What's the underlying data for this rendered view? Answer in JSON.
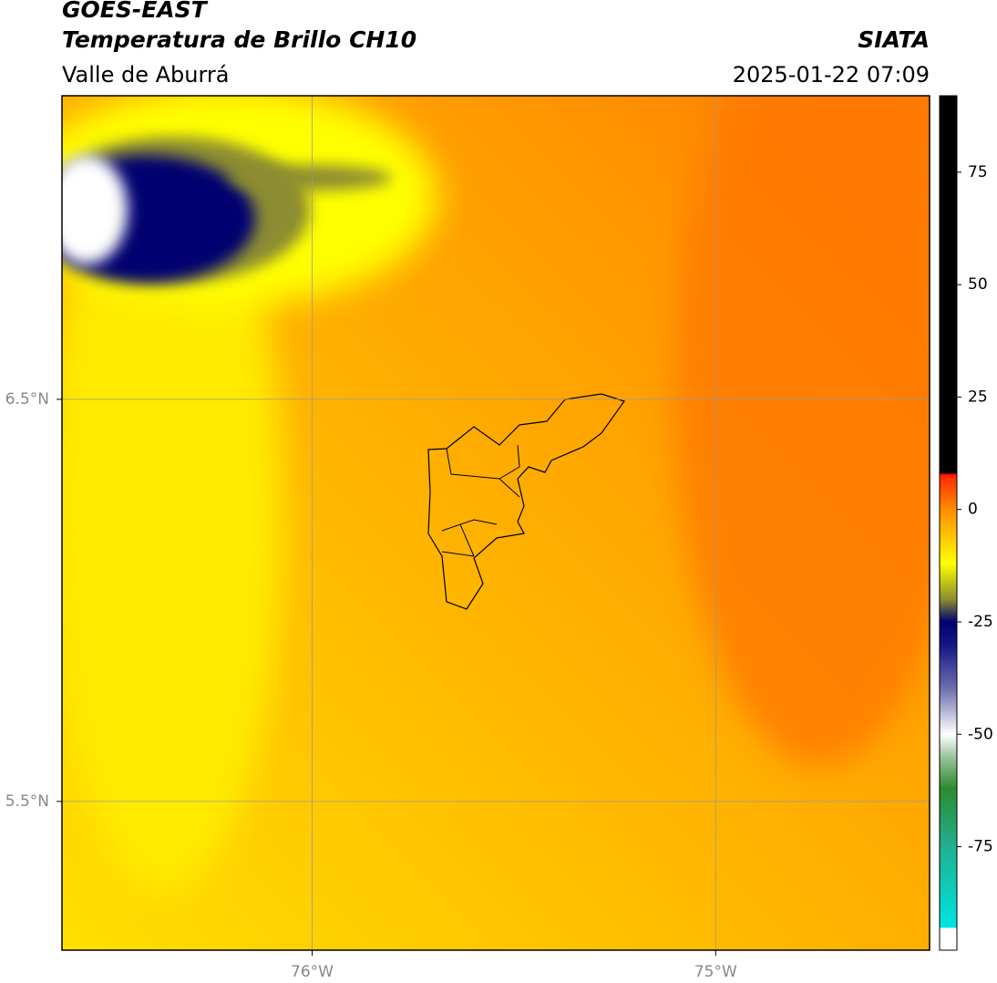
{
  "header": {
    "satellite": "GOES-EAST",
    "product": "Temperatura de Brillo CH10",
    "region": "Valle de Aburrá",
    "source": "SIATA",
    "datetime": "2025-01-22 07:09"
  },
  "map": {
    "xlim": [
      -76.62,
      -74.47
    ],
    "ylim": [
      5.13,
      7.255
    ],
    "xticks": [
      {
        "value": -76,
        "label": "76°W"
      },
      {
        "value": -75,
        "label": "75°W"
      }
    ],
    "yticks": [
      {
        "value": 6.5,
        "label": "6.5°N"
      },
      {
        "value": 5.5,
        "label": "5.5°N"
      }
    ],
    "grid": true
  },
  "colorbar": {
    "lim": [
      -98,
      92
    ],
    "ticks": [
      75,
      50,
      25,
      0,
      -25,
      -50,
      -75
    ],
    "stops": [
      {
        "value": -98,
        "color": "#ffffff"
      },
      {
        "value": -93,
        "color": "#ffffff"
      },
      {
        "value": -93,
        "color": "#00e5e0"
      },
      {
        "value": -75,
        "color": "#20b090"
      },
      {
        "value": -62,
        "color": "#2e8b2e"
      },
      {
        "value": -55,
        "color": "#9cc49c"
      },
      {
        "value": -50,
        "color": "#ffffff"
      },
      {
        "value": -40,
        "color": "#7070b0"
      },
      {
        "value": -30,
        "color": "#151585"
      },
      {
        "value": -25,
        "color": "#000070"
      },
      {
        "value": -20,
        "color": "#8c8c30"
      },
      {
        "value": -12,
        "color": "#ffff00"
      },
      {
        "value": 0,
        "color": "#ff8c00"
      },
      {
        "value": 7,
        "color": "#ff3000"
      },
      {
        "value": 8,
        "color": "#ff0000"
      },
      {
        "value": 8,
        "color": "#000000"
      },
      {
        "value": 92,
        "color": "#000000"
      }
    ]
  }
}
